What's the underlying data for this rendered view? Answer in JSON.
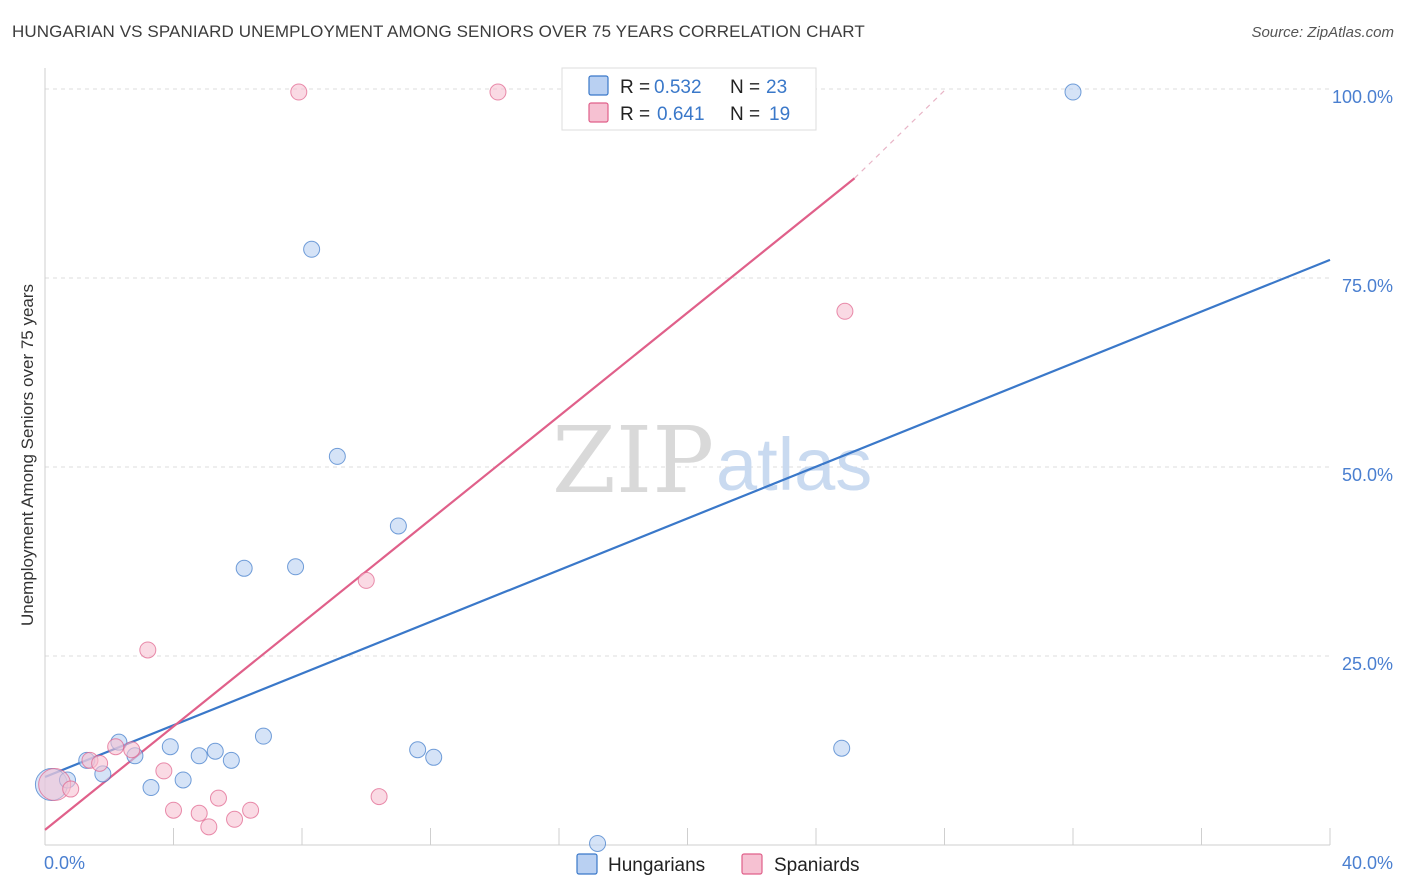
{
  "title": "HUNGARIAN VS SPANIARD UNEMPLOYMENT AMONG SENIORS OVER 75 YEARS CORRELATION CHART",
  "source": "Source: ZipAtlas.com",
  "watermark": {
    "zip": "ZIP",
    "atlas": "atlas"
  },
  "colors": {
    "hungarians": "#3a78c9",
    "hungarians_fill": "#b9d0f2",
    "spaniards": "#e0608a",
    "spaniards_fill": "#f6c1d2",
    "grid": "#dcdcdc",
    "tick_text": "#4a7fd0"
  },
  "legend": {
    "rows": [
      {
        "r_label": "R =",
        "r_value": "0.532",
        "n_label": "N =",
        "n_value": "23"
      },
      {
        "r_label": "R =",
        "r_value": "0.641",
        "n_label": "N =",
        "n_value": "19"
      }
    ]
  },
  "chart_data": {
    "type": "scatter",
    "xlabel": "",
    "ylabel": "Unemployment Among Seniors over 75 years",
    "xlim": [
      0,
      40
    ],
    "ylim": [
      0,
      100
    ],
    "x_tick_labels": [
      "0.0%",
      "40.0%"
    ],
    "y_tick_values": [
      25,
      50,
      75,
      100
    ],
    "y_tick_labels": [
      "25.0%",
      "50.0%",
      "75.0%",
      "100.0%"
    ],
    "series": [
      {
        "name": "Hungarians",
        "R": 0.532,
        "N": 23,
        "points": [
          {
            "x": 0.2,
            "y": 8.0,
            "big": true
          },
          {
            "x": 0.7,
            "y": 8.6
          },
          {
            "x": 1.3,
            "y": 11.2
          },
          {
            "x": 1.8,
            "y": 9.4
          },
          {
            "x": 2.3,
            "y": 13.6
          },
          {
            "x": 2.8,
            "y": 11.8
          },
          {
            "x": 3.3,
            "y": 7.6
          },
          {
            "x": 3.9,
            "y": 13.0
          },
          {
            "x": 4.3,
            "y": 8.6
          },
          {
            "x": 4.8,
            "y": 11.8
          },
          {
            "x": 5.3,
            "y": 12.4
          },
          {
            "x": 5.8,
            "y": 11.2
          },
          {
            "x": 6.2,
            "y": 36.6
          },
          {
            "x": 6.8,
            "y": 14.4
          },
          {
            "x": 7.8,
            "y": 36.8
          },
          {
            "x": 8.3,
            "y": 78.8
          },
          {
            "x": 9.1,
            "y": 51.4
          },
          {
            "x": 11.0,
            "y": 42.2
          },
          {
            "x": 11.6,
            "y": 12.6
          },
          {
            "x": 12.1,
            "y": 11.6
          },
          {
            "x": 17.2,
            "y": 0.2
          },
          {
            "x": 24.8,
            "y": 12.8
          },
          {
            "x": 32.0,
            "y": 99.6
          }
        ],
        "trend": {
          "x0": 0,
          "y0": 9.0,
          "x1": 40,
          "y1": 77.4
        }
      },
      {
        "name": "Spaniards",
        "R": 0.641,
        "N": 19,
        "points": [
          {
            "x": 0.3,
            "y": 8.0,
            "big": true
          },
          {
            "x": 0.8,
            "y": 7.4
          },
          {
            "x": 1.4,
            "y": 11.2
          },
          {
            "x": 1.7,
            "y": 10.8
          },
          {
            "x": 2.2,
            "y": 13.0
          },
          {
            "x": 2.7,
            "y": 12.6
          },
          {
            "x": 3.2,
            "y": 25.8
          },
          {
            "x": 3.7,
            "y": 9.8
          },
          {
            "x": 4.0,
            "y": 4.6
          },
          {
            "x": 4.8,
            "y": 4.2
          },
          {
            "x": 5.1,
            "y": 2.4
          },
          {
            "x": 5.4,
            "y": 6.2
          },
          {
            "x": 5.9,
            "y": 3.4
          },
          {
            "x": 6.4,
            "y": 4.6
          },
          {
            "x": 7.9,
            "y": 99.6
          },
          {
            "x": 10.0,
            "y": 35.0
          },
          {
            "x": 10.4,
            "y": 6.4
          },
          {
            "x": 14.1,
            "y": 99.6
          },
          {
            "x": 24.9,
            "y": 70.6
          }
        ],
        "trend": {
          "x0": 0,
          "y0": 2.0,
          "x1": 25.2,
          "y1": 88.2
        },
        "trend_dashed": {
          "x0": 25.2,
          "y0": 88.2,
          "x1": 28.0,
          "y1": 99.8
        }
      }
    ]
  }
}
